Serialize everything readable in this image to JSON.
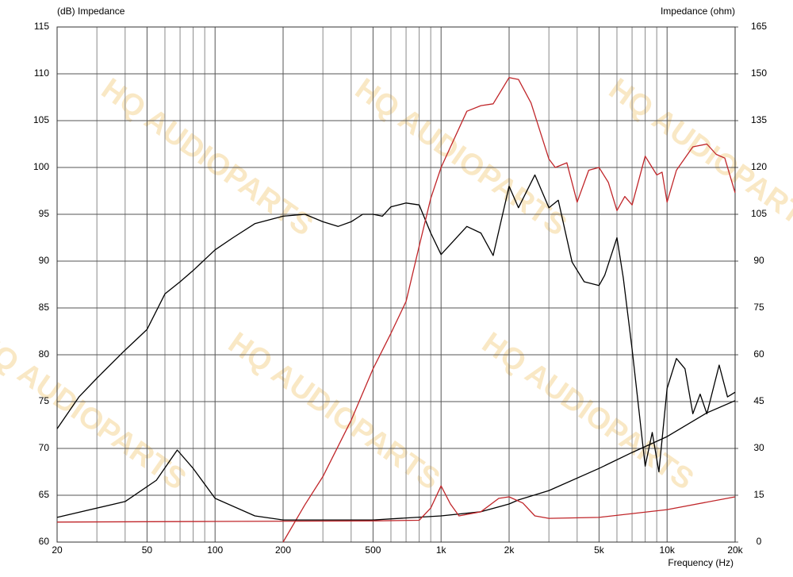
{
  "chart_data": {
    "type": "line",
    "xscale": "log",
    "y_label": "(dB)  Impedance",
    "y2_label": "Impedance  (ohm)",
    "x_label": "Frequency  (Hz)",
    "watermark": "HQ AUDIOPARTS",
    "xlim": [
      20,
      20000
    ],
    "xticks": [
      20,
      50,
      100,
      200,
      500,
      {
        "value": 1000,
        "label": "1k"
      },
      {
        "value": 2000,
        "label": "2k"
      },
      {
        "value": 5000,
        "label": "5k"
      },
      {
        "value": 10000,
        "label": "10k"
      },
      {
        "value": 20000,
        "label": "20k"
      }
    ],
    "xminor": [
      30,
      40,
      60,
      70,
      80,
      90,
      300,
      400,
      600,
      700,
      800,
      900,
      3000,
      4000,
      6000,
      7000,
      8000,
      9000
    ],
    "ylim": [
      60,
      115
    ],
    "yticks": [
      60,
      65,
      70,
      75,
      80,
      85,
      90,
      95,
      100,
      105,
      110,
      115
    ],
    "y2lim": [
      0,
      165
    ],
    "y2ticks": [
      0,
      15,
      30,
      45,
      60,
      75,
      90,
      105,
      120,
      135,
      150,
      165
    ],
    "grid": true,
    "series": [
      {
        "color": "#000000",
        "x": [
          20,
          25,
          30,
          40,
          50,
          60,
          70,
          80,
          100,
          120,
          150,
          200,
          250,
          300,
          350,
          400,
          450,
          500,
          550,
          600,
          700,
          800,
          900,
          1000,
          1300,
          1500,
          1700,
          2000,
          2200,
          2600,
          3000,
          3300,
          3800,
          4300,
          5000,
          5300,
          6000,
          6400,
          7000,
          8000,
          8600,
          9200,
          10000,
          11000,
          12000,
          13000,
          14000,
          15000,
          17000,
          18500,
          20000
        ],
        "values": [
          72.1,
          75.5,
          77.5,
          80.5,
          82.7,
          86.5,
          87.8,
          89,
          91.2,
          92.5,
          94,
          94.8,
          95,
          94.2,
          93.7,
          94.2,
          95,
          95,
          94.8,
          95.8,
          96.2,
          96,
          93,
          90.7,
          93.7,
          93,
          90.6,
          98,
          95.7,
          99.2,
          95.7,
          96.5,
          89.9,
          87.8,
          87.4,
          88.5,
          92.5,
          88.2,
          80.6,
          68.1,
          71.7,
          67.5,
          76.4,
          79.6,
          78.5,
          73.7,
          75.8,
          73.7,
          78.9,
          75.5,
          76
        ]
      },
      {
        "color": "#c0262a",
        "x": [
          200,
          250,
          300,
          400,
          500,
          600,
          700,
          800,
          900,
          1000,
          1300,
          1500,
          1700,
          2000,
          2200,
          2500,
          3000,
          3200,
          3600,
          4000,
          4500,
          5000,
          5500,
          6000,
          6500,
          7000,
          8000,
          9000,
          9500,
          10000,
          11000,
          13000,
          15000,
          16500,
          18000,
          20000
        ],
        "values": [
          60,
          64,
          67,
          73,
          78.5,
          82.3,
          85.7,
          91.6,
          96.7,
          100,
          106,
          106.6,
          106.8,
          109.6,
          109.4,
          106.9,
          100.9,
          100,
          100.5,
          96.3,
          99.7,
          100,
          98.4,
          95.4,
          96.9,
          96,
          101.2,
          99.2,
          99.5,
          96.3,
          99.7,
          102.2,
          102.5,
          101.4,
          101,
          97.3
        ]
      },
      {
        "color": "#000000",
        "axis": "y2",
        "x": [
          20,
          40,
          55,
          68,
          80,
          100,
          150,
          200,
          500,
          1000,
          1500,
          2000,
          2200,
          3000,
          5000,
          7000,
          10000,
          15000,
          20000
        ],
        "values": [
          7.9,
          13,
          19.8,
          29.5,
          23.6,
          14,
          8.4,
          7.1,
          7.1,
          8.4,
          9.7,
          12.2,
          13.5,
          16.5,
          23.6,
          28.7,
          33.8,
          41.4,
          45.3
        ]
      },
      {
        "color": "#c0262a",
        "axis": "y2",
        "x": [
          20,
          100,
          500,
          800,
          900,
          1000,
          1100,
          1200,
          1500,
          1800,
          2000,
          2300,
          2600,
          3000,
          5000,
          10000,
          20000
        ],
        "values": [
          6.4,
          6.6,
          6.8,
          7,
          10.9,
          18,
          12.2,
          8.4,
          9.7,
          14,
          14.5,
          12.5,
          8.4,
          7.6,
          7.9,
          10.4,
          14.5
        ]
      }
    ]
  }
}
